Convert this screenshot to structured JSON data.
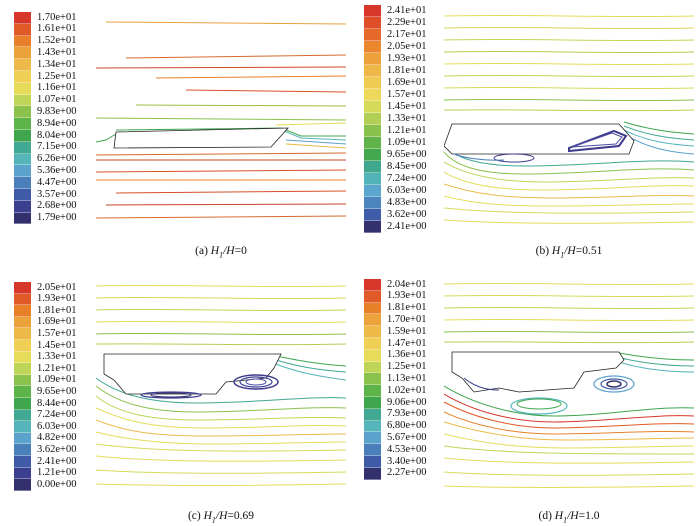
{
  "figure": {
    "panels": [
      {
        "id": "a",
        "caption_prefix": "(a)",
        "caption_value": "=0",
        "legend": [
          "1.70e+01",
          "1.61e+01",
          "1.52e+01",
          "1.43e+01",
          "1.34e+01",
          "1.25e+01",
          "1.16e+01",
          "1.07e+01",
          "9.83e+00",
          "8.94e+00",
          "8.04e+00",
          "7.15e+00",
          "6.26e+00",
          "5.36e+00",
          "4.47e+00",
          "3.57e+00",
          "2.68e+00",
          "1.79e+00"
        ],
        "colors": [
          "#d7362a",
          "#e05a28",
          "#e8802a",
          "#eba23a",
          "#edb948",
          "#f0cf55",
          "#e6dc5a",
          "#bfd557",
          "#8ac24d",
          "#5db448",
          "#3fa64e",
          "#41a893",
          "#55b5bb",
          "#5ba2cc",
          "#4b7fbc",
          "#3f5aa6",
          "#3c3f8f",
          "#34306e"
        ]
      },
      {
        "id": "b",
        "caption_prefix": "(b)",
        "caption_value": "=0.51",
        "legend": [
          "2.41e+01",
          "2.29e+01",
          "2.17e+01",
          "2.05e+01",
          "1.93e+01",
          "1.81e+01",
          "1.69e+01",
          "1.57e+01",
          "1.45e+01",
          "1.33e+01",
          "1.21e+01",
          "1.09e+01",
          "9.65e+00",
          "8.45e+00",
          "7.24e+00",
          "6.03e+00",
          "4.83e+00",
          "3.62e+00",
          "2.41e+00"
        ],
        "colors": [
          "#d7362a",
          "#de4f29",
          "#e5692a",
          "#ea862e",
          "#eda13b",
          "#efb747",
          "#f0cb53",
          "#ecd95a",
          "#d6da5b",
          "#b2cf55",
          "#89c14d",
          "#60b449",
          "#44a84f",
          "#40a78f",
          "#52b3b8",
          "#5aa6cc",
          "#4c84be",
          "#3f5ca8",
          "#34306e"
        ]
      },
      {
        "id": "c",
        "caption_prefix": "(c)",
        "caption_value": "=0.69",
        "legend": [
          "2.05e+01",
          "1.93e+01",
          "1.81e+01",
          "1.69e+01",
          "1.57e+01",
          "1.45e+01",
          "1.33e+01",
          "1.21e+01",
          "1.09e+01",
          "9.65e+00",
          "8.44e+00",
          "7.24e+00",
          "6.03e+00",
          "4.82e+00",
          "3.62e+00",
          "2.41e+00",
          "1.21e+00",
          "0.00e+00"
        ],
        "colors": [
          "#d7362a",
          "#e05a28",
          "#e8802a",
          "#eba23a",
          "#edb948",
          "#f0cf55",
          "#e6dc5a",
          "#bfd557",
          "#8ac24d",
          "#5db448",
          "#3fa64e",
          "#41a893",
          "#55b5bb",
          "#5ba2cc",
          "#4b7fbc",
          "#3f5aa6",
          "#3c3f8f",
          "#34306e"
        ]
      },
      {
        "id": "d",
        "caption_prefix": "(d)",
        "caption_value": "=1.0",
        "legend": [
          "2.04e+01",
          "1.93e+01",
          "1.81e+01",
          "1.70e+01",
          "1.59e+01",
          "1.47e+01",
          "1.36e+01",
          "1.25e+01",
          "1.13e+01",
          "1.02e+01",
          "9.06e+00",
          "7.93e+00",
          "6.80e+00",
          "5.67e+00",
          "4.53e+00",
          "3.40e+00",
          "2.27e+00"
        ],
        "colors": [
          "#d7362a",
          "#e05a28",
          "#e8802a",
          "#eba23a",
          "#edb948",
          "#f0cf55",
          "#e6dc5a",
          "#bfd557",
          "#8ac24d",
          "#5db448",
          "#3fa64e",
          "#41a893",
          "#55b5bb",
          "#5ba2cc",
          "#4b7fbc",
          "#3f5aa6",
          "#34306e"
        ]
      }
    ],
    "caption_var_H1": "H",
    "caption_sub": "1",
    "caption_slash_H": "/H"
  }
}
